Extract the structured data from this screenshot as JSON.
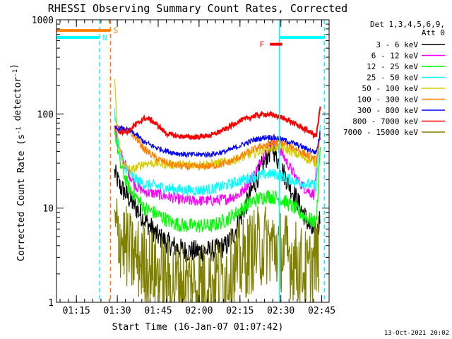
{
  "chart_data": {
    "type": "line",
    "title": "RHESSI Observing Summary Count Rates, Corrected",
    "xlabel": "Start Time (16-Jan-07 01:07:42)",
    "ylabel": "Corrected Count Rate (s⁻¹ detector⁻¹)",
    "y_scale": "log",
    "ylim": [
      1,
      1000
    ],
    "xlim": [
      "01:07:42",
      "02:47:42"
    ],
    "x_ticks": [
      "01:15",
      "01:30",
      "01:45",
      "02:00",
      "02:15",
      "02:30",
      "02:45"
    ],
    "y_ticks": [
      "1",
      "10",
      "100",
      "1000"
    ],
    "grid": false,
    "legend_title": [
      "Det 1,3,4,5,6,9,",
      "Att 0"
    ],
    "legend_position": "right",
    "footer": "13-Oct-2021 20:02",
    "series": [
      {
        "name": "3 - 6 keV",
        "color": "#000000",
        "noise": 0.12,
        "x": [
          "01:29:00",
          "01:31:00",
          "01:35:00",
          "01:40:00",
          "01:45:00",
          "01:50:00",
          "01:55:00",
          "02:00:00",
          "02:05:00",
          "02:10:00",
          "02:13:00",
          "02:16:00",
          "02:20:00",
          "02:24:00",
          "02:27:00",
          "02:30:00",
          "02:33:00",
          "02:36:00",
          "02:39:00",
          "02:41:00",
          "02:43:00",
          "02:44:30"
        ],
        "y": [
          24,
          17,
          12,
          7.5,
          5,
          4,
          3.5,
          3.5,
          3.5,
          4,
          5.5,
          9,
          17,
          32,
          45,
          27,
          18,
          12,
          8,
          6,
          4.5,
          9
        ]
      },
      {
        "name": "6 - 12 keV",
        "color": "#ff00ff",
        "noise": 0.06,
        "x": [
          "01:29:00",
          "01:31:00",
          "01:34:00",
          "01:37:00",
          "01:40:00",
          "01:45:00",
          "01:50:00",
          "01:55:00",
          "02:00:00",
          "02:05:00",
          "02:10:00",
          "02:15:00",
          "02:20:00",
          "02:24:00",
          "02:27:00",
          "02:30:00",
          "02:33:00",
          "02:36:00",
          "02:39:00",
          "02:42:00",
          "02:44:30"
        ],
        "y": [
          70,
          40,
          24,
          17,
          15,
          14,
          13,
          12,
          12,
          12,
          12.5,
          14,
          22,
          38,
          52,
          40,
          28,
          20,
          16,
          14,
          60
        ]
      },
      {
        "name": "12 - 25 keV",
        "color": "#00ff00",
        "noise": 0.08,
        "x": [
          "01:29:00",
          "01:31:00",
          "01:34:00",
          "01:37:00",
          "01:40:00",
          "01:45:00",
          "01:50:00",
          "01:55:00",
          "02:00:00",
          "02:05:00",
          "02:10:00",
          "02:15:00",
          "02:20:00",
          "02:25:00",
          "02:28:00",
          "02:31:00",
          "02:35:00",
          "02:39:00",
          "02:43:00",
          "02:44:30"
        ],
        "y": [
          70,
          30,
          17,
          13,
          10,
          8.5,
          7,
          6.5,
          6.5,
          6.5,
          7.5,
          9.5,
          12,
          13.5,
          13,
          12,
          10,
          8,
          7,
          50
        ]
      },
      {
        "name": "25 - 50 keV",
        "color": "#00ffff",
        "noise": 0.06,
        "x": [
          "01:29:00",
          "01:31:00",
          "01:34:00",
          "01:37:00",
          "01:40:00",
          "01:45:00",
          "01:50:00",
          "01:55:00",
          "02:00:00",
          "02:05:00",
          "02:10:00",
          "02:15:00",
          "02:20:00",
          "02:25:00",
          "02:28:00",
          "02:32:00",
          "02:36:00",
          "02:40:00",
          "02:43:00",
          "02:44:30"
        ],
        "y": [
          100,
          36,
          24,
          20,
          18,
          17,
          16,
          15.5,
          15.5,
          16,
          17.5,
          19.5,
          21.5,
          23,
          23,
          21,
          19,
          18,
          17,
          70
        ]
      },
      {
        "name": "50 - 100 keV",
        "color": "#d8cc00",
        "noise": 0.05,
        "x": [
          "01:29:00",
          "01:30:00",
          "01:32:00",
          "01:35:00",
          "01:40:00",
          "01:45:00",
          "01:50:00",
          "01:55:00",
          "02:00:00",
          "02:05:00",
          "02:10:00",
          "02:15:00",
          "02:20:00",
          "02:25:00",
          "02:28:00",
          "02:32:00",
          "02:36:00",
          "02:40:00",
          "02:43:00",
          "02:44:30"
        ],
        "y": [
          250,
          60,
          30,
          25,
          30,
          30,
          29,
          29,
          29,
          29.5,
          31,
          34,
          38,
          43,
          44,
          42,
          37,
          33,
          30,
          65
        ]
      },
      {
        "name": "100 - 300 keV",
        "color": "#ff8000",
        "noise": 0.04,
        "x": [
          "01:29:00",
          "01:31:00",
          "01:34:00",
          "01:37:00",
          "01:40:00",
          "01:45:00",
          "01:50:00",
          "01:55:00",
          "02:00:00",
          "02:05:00",
          "02:10:00",
          "02:15:00",
          "02:20:00",
          "02:25:00",
          "02:28:00",
          "02:32:00",
          "02:36:00",
          "02:40:00",
          "02:43:00",
          "02:44:30"
        ],
        "y": [
          70,
          70,
          65,
          55,
          42,
          33,
          29,
          27.5,
          27.5,
          28,
          30,
          35,
          42,
          48,
          50,
          48,
          42,
          36,
          32,
          60
        ]
      },
      {
        "name": "300 - 800 keV",
        "color": "#0000ff",
        "noise": 0.03,
        "x": [
          "01:29:00",
          "01:31:00",
          "01:34:00",
          "01:37:00",
          "01:40:00",
          "01:45:00",
          "01:50:00",
          "01:55:00",
          "02:00:00",
          "02:05:00",
          "02:10:00",
          "02:15:00",
          "02:20:00",
          "02:25:00",
          "02:28:00",
          "02:32:00",
          "02:36:00",
          "02:40:00",
          "02:43:00",
          "02:44:30"
        ],
        "y": [
          70,
          70,
          67,
          60,
          50,
          43,
          39,
          37,
          37,
          37.5,
          40,
          46,
          53,
          57,
          56,
          52,
          47,
          42,
          39,
          65
        ]
      },
      {
        "name": "800 - 7000 keV",
        "color": "#ff0000",
        "noise": 0.025,
        "x": [
          "01:30:30",
          "01:34:00",
          "01:37:00",
          "01:40:00",
          "01:42:00",
          "01:45:00",
          "01:48:00",
          "01:52:00",
          "01:56:00",
          "02:00:00",
          "02:05:00",
          "02:10:00",
          "02:15:00",
          "02:20:00",
          "02:24:00",
          "02:28:00",
          "02:32:00",
          "02:36:00",
          "02:40:00",
          "02:43:00",
          "02:44:30"
        ],
        "y": [
          65,
          65,
          78,
          90,
          88,
          75,
          62,
          58,
          57,
          57,
          60,
          70,
          85,
          95,
          100,
          96,
          88,
          76,
          66,
          58,
          120
        ]
      },
      {
        "name": "7000 - 15000 keV",
        "color": "#808000",
        "noise": 0.45,
        "x": [
          "01:29:00",
          "01:32:00",
          "01:35:00",
          "01:40:00",
          "01:45:00",
          "01:50:00",
          "01:55:00",
          "02:00:00",
          "02:05:00",
          "02:10:00",
          "02:15:00",
          "02:20:00",
          "02:25:00",
          "02:30:00",
          "02:35:00",
          "02:40:00",
          "02:44:00"
        ],
        "y": [
          6,
          4.5,
          3.2,
          2.6,
          2.0,
          1.7,
          1.6,
          1.6,
          1.7,
          2.0,
          2.6,
          3.6,
          4.2,
          3.6,
          2.8,
          2.0,
          3.5
        ]
      }
    ],
    "overlays": {
      "verticals": [
        {
          "time": "01:23:30",
          "color": "#00ffff",
          "style": "dashed"
        },
        {
          "time": "01:27:30",
          "color": "#ff8000",
          "style": "dashed"
        },
        {
          "time": "02:29:30",
          "color": "#00ffff",
          "style": "solid"
        },
        {
          "time": "02:46:00",
          "color": "#00ffff",
          "style": "dashed"
        }
      ],
      "bars": [
        {
          "label": "S",
          "color": "#ff8000",
          "start": "01:07:42",
          "end": "01:27:30",
          "value": 770
        },
        {
          "label": "N",
          "color": "#00ffff",
          "start": "01:07:42",
          "end": "01:23:30",
          "value": 650
        },
        {
          "label": "",
          "color": "#00ffff",
          "start": "02:29:30",
          "end": "02:46:00",
          "value": 650
        },
        {
          "label": "F",
          "color": "#ff0000",
          "start": "02:26:00",
          "end": "02:30:30",
          "value": 550
        }
      ]
    }
  }
}
